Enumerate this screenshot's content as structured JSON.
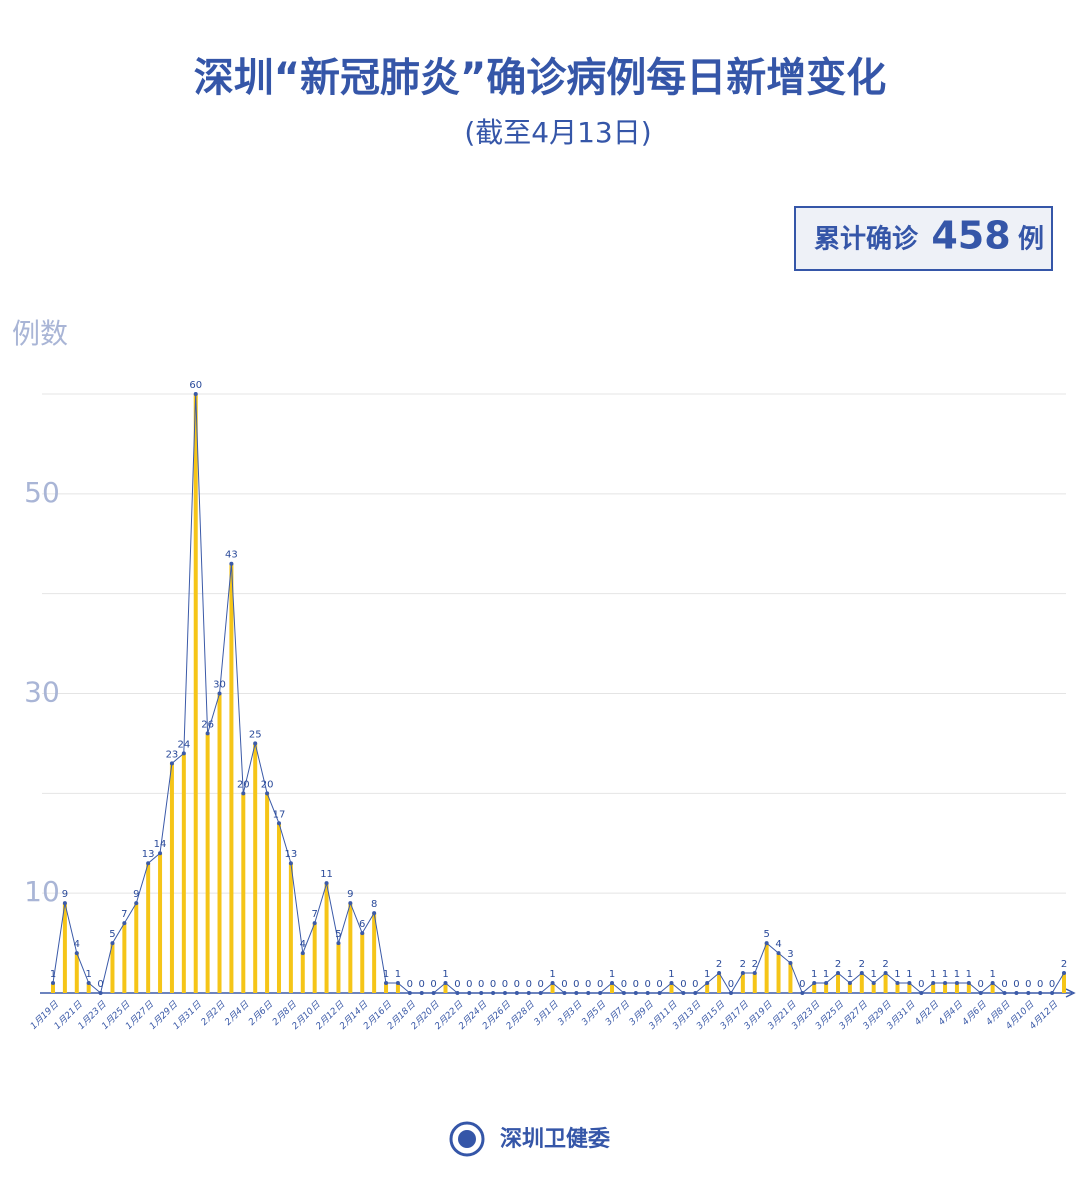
{
  "chart_data": {
    "type": "bar-line",
    "title": "深圳“新冠肺炎”确诊病例每日新增变化",
    "subtitle": "(截至4月13日)",
    "y_label": "例数",
    "summary": {
      "prefix": "累计确诊",
      "value": 458,
      "suffix": "例"
    },
    "source": "深圳卫健委",
    "categories": [
      "1月19日",
      null,
      "1月21日",
      null,
      "1月23日",
      null,
      "1月25日",
      null,
      "1月27日",
      null,
      "1月29日",
      null,
      "1月31日",
      null,
      "2月2日",
      null,
      "2月4日",
      null,
      "2月6日",
      null,
      "2月8日",
      null,
      "2月10日",
      null,
      "2月12日",
      null,
      "2月14日",
      null,
      "2月16日",
      null,
      "2月18日",
      null,
      "2月20日",
      null,
      "2月22日",
      null,
      "2月24日",
      null,
      "2月26日",
      null,
      "2月28日",
      null,
      "3月1日",
      null,
      "3月3日",
      null,
      "3月5日",
      null,
      "3月7日",
      null,
      "3月9日",
      null,
      "3月11日",
      null,
      "3月13日",
      null,
      "3月15日",
      null,
      "3月17日",
      null,
      "3月19日",
      null,
      "3月21日",
      null,
      "3月23日",
      null,
      "3月25日",
      null,
      "3月27日",
      null,
      "3月29日",
      null,
      "3月31日",
      null,
      "4月2日",
      null,
      "4月4日",
      null,
      "4月6日",
      null,
      "4月8日",
      null,
      "4月10日",
      null,
      "4月12日",
      null
    ],
    "values": [
      1,
      9,
      4,
      1,
      0,
      5,
      7,
      9,
      13,
      14,
      23,
      24,
      60,
      26,
      30,
      43,
      20,
      25,
      20,
      17,
      13,
      4,
      7,
      11,
      5,
      9,
      6,
      8,
      1,
      1,
      0,
      0,
      0,
      1,
      0,
      0,
      0,
      0,
      0,
      0,
      0,
      0,
      1,
      0,
      0,
      0,
      0,
      1,
      0,
      0,
      0,
      0,
      1,
      0,
      0,
      1,
      2,
      0,
      2,
      2,
      5,
      4,
      3,
      0,
      1,
      1,
      2,
      1,
      2,
      1,
      2,
      1,
      1,
      0,
      1,
      1,
      1,
      1,
      0,
      1,
      0,
      0,
      0,
      0,
      0,
      2
    ],
    "bar_color": "#f5c518",
    "line_color": "#3b5aa8",
    "ylim": [
      0,
      60
    ],
    "yticks": [
      10,
      30,
      50
    ],
    "grid": true
  }
}
